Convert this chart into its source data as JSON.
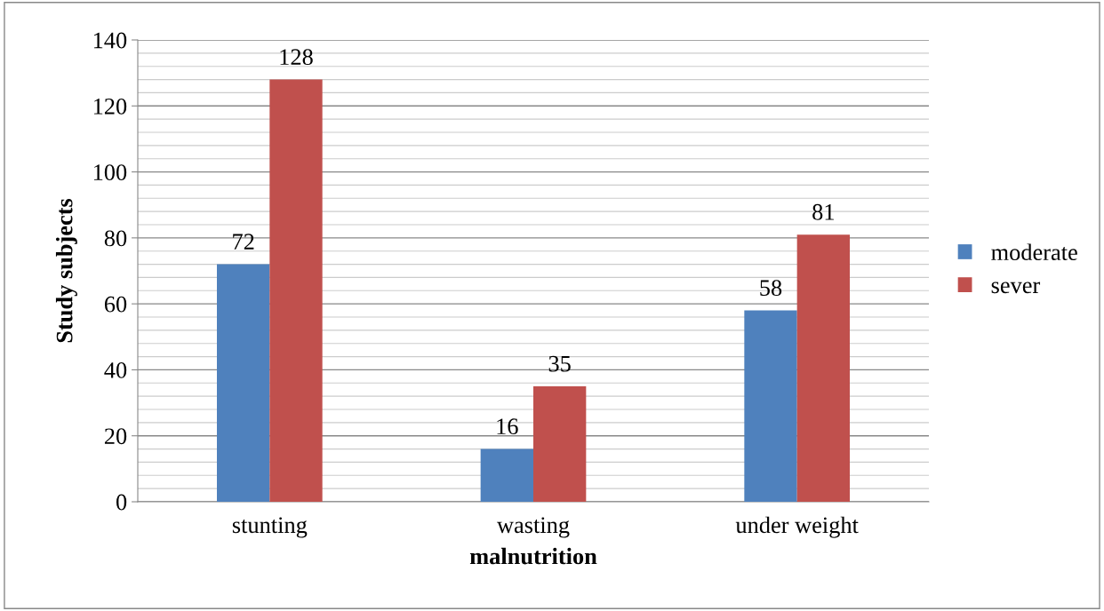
{
  "chart_data": {
    "type": "bar",
    "xlabel": "malnutrition",
    "ylabel": "Study subjects",
    "categories": [
      "stunting",
      "wasting",
      "under weight"
    ],
    "series": [
      {
        "name": "moderate",
        "color": "#4f81bd",
        "values": [
          72,
          16,
          58
        ]
      },
      {
        "name": "sever",
        "color": "#c0504d",
        "values": [
          128,
          35,
          81
        ]
      }
    ],
    "ylim": [
      0,
      140
    ],
    "yticks": [
      0,
      20,
      40,
      60,
      80,
      100,
      120,
      140
    ],
    "grid": "y",
    "legend": "right",
    "data_labels": true
  }
}
